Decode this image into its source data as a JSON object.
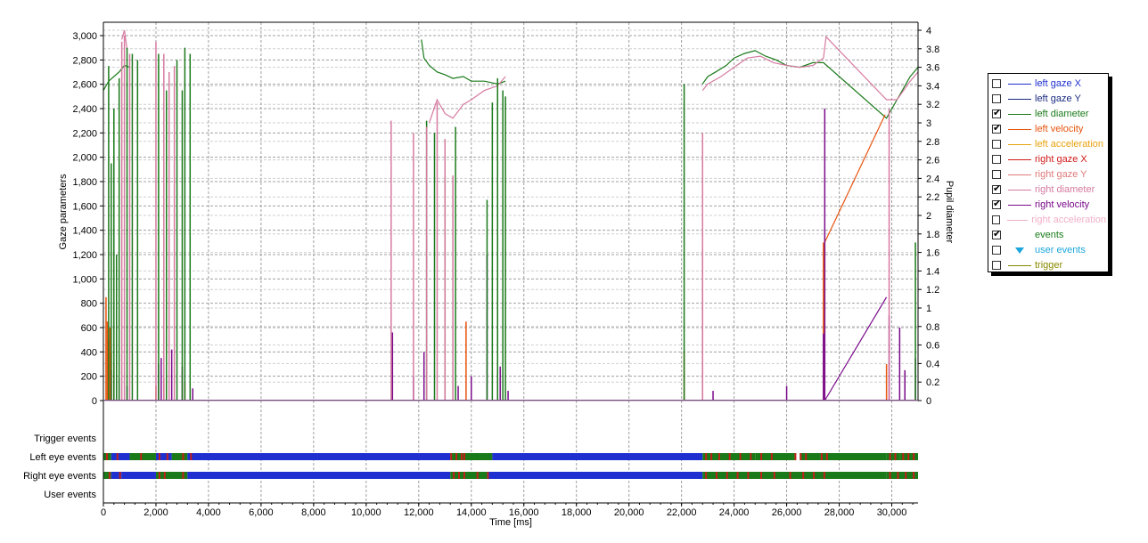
{
  "chart_data": {
    "type": "line",
    "xlabel": "Time [ms]",
    "ylabel_left": "Gaze parameters",
    "ylabel_right": "Pupil diameter",
    "xlim": [
      0,
      31000
    ],
    "ylim_left": [
      0,
      3000
    ],
    "ylim_right": [
      0,
      4
    ],
    "x_ticks": [
      0,
      2000,
      4000,
      6000,
      8000,
      10000,
      12000,
      14000,
      16000,
      18000,
      20000,
      22000,
      24000,
      26000,
      28000,
      30000
    ],
    "x_tick_labels": [
      "0",
      "2,000",
      "4,000",
      "6,000",
      "8,000",
      "10,000",
      "12,000",
      "14,000",
      "16,000",
      "18,000",
      "20,000",
      "22,000",
      "24,000",
      "26,000",
      "28,000",
      "30,000"
    ],
    "y_left_ticks": [
      0,
      200,
      400,
      600,
      800,
      1000,
      1200,
      1400,
      1600,
      1800,
      2000,
      2200,
      2400,
      2600,
      2800,
      3000
    ],
    "y_left_tick_labels": [
      "0",
      "200",
      "400",
      "600",
      "800",
      "1,000",
      "1,200",
      "1,400",
      "1,600",
      "1,800",
      "2,000",
      "2,200",
      "2,400",
      "2,600",
      "2,800",
      "3,000"
    ],
    "y_right_ticks": [
      0,
      0.2,
      0.4,
      0.6,
      0.8,
      1,
      1.2,
      1.4,
      1.6,
      1.8,
      2,
      2.2,
      2.4,
      2.6,
      2.8,
      3,
      3.2,
      3.4,
      3.6,
      3.8,
      4
    ],
    "y_right_tick_labels": [
      "0",
      "0.2",
      "0.4",
      "0.6",
      "0.8",
      "1",
      "1.2",
      "1.4",
      "1.6",
      "1.8",
      "2",
      "2.2",
      "2.4",
      "2.6",
      "2.8",
      "3",
      "3.2",
      "3.4",
      "3.6",
      "3.8",
      "4"
    ],
    "grid": true,
    "legend_position": "right",
    "legend": [
      {
        "name": "left gaze X",
        "checked": false,
        "color": "#1f2fd0"
      },
      {
        "name": "left gaze Y",
        "checked": false,
        "color": "#1a2a80"
      },
      {
        "name": "left diameter",
        "checked": true,
        "color": "#1a7a1a"
      },
      {
        "name": "left velocity",
        "checked": true,
        "color": "#e8540e"
      },
      {
        "name": "left acceleration",
        "checked": false,
        "color": "#e8a20e"
      },
      {
        "name": "right gaze X",
        "checked": false,
        "color": "#d01a1a"
      },
      {
        "name": "right gaze Y",
        "checked": false,
        "color": "#e07a7a"
      },
      {
        "name": "right diameter",
        "checked": true,
        "color": "#d67aa0"
      },
      {
        "name": "right velocity",
        "checked": true,
        "color": "#7a0a8a"
      },
      {
        "name": "right acceleration",
        "checked": false,
        "color": "#f0b0c8"
      },
      {
        "name": "events",
        "checked": true,
        "color": "#1a7a1a"
      },
      {
        "name": "user events",
        "checked": false,
        "color": "#1ca7dc"
      },
      {
        "name": "trigger",
        "checked": false,
        "color": "#8a8a00"
      }
    ],
    "series": [
      {
        "name": "left diameter",
        "axis": "right",
        "color": "#1a7a1a",
        "segments": [
          [
            [
              0,
              3.35
            ],
            [
              200,
              3.45
            ],
            [
              400,
              3.5
            ],
            [
              600,
              3.55
            ],
            [
              800,
              3.62
            ],
            [
              1000,
              3.6
            ]
          ],
          [
            [
              12100,
              3.9
            ],
            [
              12200,
              3.7
            ],
            [
              12400,
              3.62
            ],
            [
              12700,
              3.55
            ],
            [
              13000,
              3.52
            ],
            [
              13300,
              3.48
            ],
            [
              13700,
              3.5
            ],
            [
              14000,
              3.45
            ],
            [
              14500,
              3.45
            ],
            [
              15000,
              3.42
            ],
            [
              15300,
              3.45
            ]
          ],
          [
            [
              22800,
              3.42
            ],
            [
              23000,
              3.5
            ],
            [
              23300,
              3.55
            ],
            [
              23700,
              3.62
            ],
            [
              24000,
              3.7
            ],
            [
              24400,
              3.75
            ],
            [
              24800,
              3.78
            ],
            [
              25200,
              3.72
            ],
            [
              25600,
              3.68
            ],
            [
              26000,
              3.62
            ],
            [
              26500,
              3.6
            ],
            [
              27000,
              3.65
            ],
            [
              27400,
              3.65
            ],
            [
              29800,
              3.05
            ],
            [
              30200,
              3.25
            ],
            [
              30700,
              3.5
            ],
            [
              31000,
              3.6
            ]
          ]
        ]
      },
      {
        "name": "right diameter",
        "axis": "right",
        "color": "#d67aa0",
        "segments": [
          [
            [
              700,
              3.9
            ],
            [
              800,
              4.0
            ],
            [
              900,
              3.8
            ]
          ],
          [
            [
              12400,
              3.0
            ],
            [
              12700,
              3.25
            ],
            [
              13000,
              3.1
            ],
            [
              13300,
              3.05
            ],
            [
              13700,
              3.2
            ],
            [
              14000,
              3.25
            ],
            [
              14500,
              3.35
            ],
            [
              15000,
              3.4
            ],
            [
              15300,
              3.5
            ]
          ],
          [
            [
              22800,
              3.35
            ],
            [
              23000,
              3.42
            ],
            [
              23500,
              3.5
            ],
            [
              24000,
              3.6
            ],
            [
              24500,
              3.7
            ],
            [
              25000,
              3.72
            ],
            [
              25500,
              3.65
            ],
            [
              26000,
              3.62
            ],
            [
              26500,
              3.6
            ],
            [
              27000,
              3.62
            ],
            [
              27400,
              3.7
            ],
            [
              27500,
              3.93
            ],
            [
              29800,
              3.25
            ],
            [
              30200,
              3.25
            ],
            [
              30700,
              3.45
            ],
            [
              31000,
              3.55
            ]
          ]
        ]
      },
      {
        "name": "left velocity",
        "axis": "left",
        "color": "#e8540e",
        "spikes": [
          [
            100,
            850
          ],
          [
            150,
            650
          ],
          [
            200,
            500
          ],
          [
            250,
            600
          ],
          [
            300,
            400
          ],
          [
            400,
            300
          ],
          [
            500,
            200
          ],
          [
            2000,
            120
          ],
          [
            2300,
            180
          ],
          [
            3100,
            150
          ],
          [
            13800,
            650
          ],
          [
            22100,
            400
          ],
          [
            27400,
            1300
          ],
          [
            29800,
            300
          ]
        ],
        "segments": [
          [
            [
              27450,
              1300
            ],
            [
              29750,
              2350
            ]
          ]
        ]
      },
      {
        "name": "right velocity",
        "axis": "left",
        "color": "#7a0a8a",
        "spikes": [
          [
            300,
            250
          ],
          [
            600,
            180
          ],
          [
            900,
            120
          ],
          [
            2100,
            300
          ],
          [
            2200,
            350
          ],
          [
            2400,
            150
          ],
          [
            2600,
            420
          ],
          [
            3000,
            280
          ],
          [
            3400,
            100
          ],
          [
            11000,
            560
          ],
          [
            11800,
            200
          ],
          [
            12200,
            400
          ],
          [
            13500,
            120
          ],
          [
            14000,
            200
          ],
          [
            14600,
            1200
          ],
          [
            15100,
            280
          ],
          [
            15400,
            80
          ],
          [
            22800,
            1250
          ],
          [
            23200,
            80
          ],
          [
            26000,
            120
          ],
          [
            27400,
            550
          ],
          [
            27450,
            2400
          ],
          [
            29900,
            700
          ],
          [
            30300,
            600
          ],
          [
            30500,
            250
          ],
          [
            30900,
            350
          ]
        ],
        "segments": [
          [
            [
              27450,
              0
            ],
            [
              29800,
              850
            ]
          ]
        ]
      },
      {
        "name": "left diameter bars",
        "axis": "left",
        "color": "#1a7a1a",
        "spikes": [
          [
            200,
            2750
          ],
          [
            300,
            1950
          ],
          [
            400,
            2400
          ],
          [
            500,
            1200
          ],
          [
            600,
            2650
          ],
          [
            900,
            2900
          ],
          [
            1100,
            2850
          ],
          [
            1300,
            2800
          ],
          [
            2100,
            2850
          ],
          [
            2400,
            2550
          ],
          [
            2800,
            2800
          ],
          [
            3000,
            2550
          ],
          [
            3100,
            2900
          ],
          [
            3300,
            2850
          ],
          [
            12300,
            2300
          ],
          [
            12600,
            2200
          ],
          [
            13000,
            1850
          ],
          [
            13400,
            2250
          ],
          [
            14600,
            1650
          ],
          [
            14800,
            2450
          ],
          [
            15000,
            2650
          ],
          [
            15200,
            2550
          ],
          [
            15300,
            2500
          ],
          [
            22100,
            2600
          ],
          [
            30900,
            1300
          ]
        ]
      },
      {
        "name": "right diameter bars",
        "axis": "left",
        "color": "#d67aa0",
        "spikes": [
          [
            700,
            2950
          ],
          [
            800,
            3000
          ],
          [
            1000,
            2850
          ],
          [
            2000,
            2950
          ],
          [
            2300,
            2850
          ],
          [
            2500,
            2700
          ],
          [
            2700,
            2750
          ],
          [
            10950,
            2300
          ],
          [
            11800,
            2200
          ],
          [
            12300,
            2250
          ],
          [
            12700,
            2450
          ],
          [
            13000,
            2150
          ],
          [
            13300,
            1850
          ],
          [
            22800,
            2200
          ],
          [
            29900,
            2400
          ]
        ]
      }
    ],
    "event_tracks": [
      {
        "label": "Trigger events",
        "spans": []
      },
      {
        "label": "Left eye events",
        "spans": [
          {
            "from": 0,
            "to": 300,
            "color": "#1a7a1a"
          },
          {
            "from": 300,
            "to": 1000,
            "color": "#1f2fd0"
          },
          {
            "from": 1000,
            "to": 2000,
            "color": "#1a7a1a"
          },
          {
            "from": 2000,
            "to": 2600,
            "color": "#1f2fd0"
          },
          {
            "from": 2600,
            "to": 3200,
            "color": "#1a7a1a"
          },
          {
            "from": 3200,
            "to": 13200,
            "color": "#1f2fd0"
          },
          {
            "from": 13200,
            "to": 13600,
            "color": "#1a7a1a"
          },
          {
            "from": 13600,
            "to": 14800,
            "color": "#1a7a1a"
          },
          {
            "from": 14800,
            "to": 22800,
            "color": "#1f2fd0"
          },
          {
            "from": 22800,
            "to": 24800,
            "color": "#1a7a1a"
          },
          {
            "from": 24800,
            "to": 26300,
            "color": "#1a7a1a"
          },
          {
            "from": 26500,
            "to": 27300,
            "color": "#1a7a1a"
          },
          {
            "from": 27300,
            "to": 29800,
            "color": "#1a7a1a"
          },
          {
            "from": 29800,
            "to": 30300,
            "color": "#1a7a1a"
          },
          {
            "from": 30300,
            "to": 31000,
            "color": "#1a7a1a"
          }
        ]
      },
      {
        "label": "Right eye events",
        "spans": [
          {
            "from": 0,
            "to": 300,
            "color": "#1a7a1a"
          },
          {
            "from": 300,
            "to": 700,
            "color": "#1f2fd0"
          },
          {
            "from": 700,
            "to": 2000,
            "color": "#1f2fd0"
          },
          {
            "from": 2000,
            "to": 3200,
            "color": "#1a7a1a"
          },
          {
            "from": 3200,
            "to": 13200,
            "color": "#1f2fd0"
          },
          {
            "from": 13200,
            "to": 14600,
            "color": "#1a7a1a"
          },
          {
            "from": 14600,
            "to": 22800,
            "color": "#1f2fd0"
          },
          {
            "from": 22800,
            "to": 29800,
            "color": "#1a7a1a"
          },
          {
            "from": 29800,
            "to": 31000,
            "color": "#1a7a1a"
          }
        ]
      },
      {
        "label": "User events",
        "spans": []
      }
    ],
    "event_marks": [
      {
        "track": 1,
        "x": [
          100,
          500,
          1400,
          2100,
          2400,
          3000,
          3300,
          13200,
          13400,
          13600,
          13700,
          22900,
          23100,
          23400,
          23800,
          24200,
          24600,
          25000,
          25400,
          26300,
          26500,
          26700,
          27300,
          27500,
          29900,
          30100,
          30400,
          30600,
          30800
        ],
        "color": "#c0201a"
      },
      {
        "track": 2,
        "x": [
          200,
          600,
          2100,
          2300,
          3000,
          13300,
          13500,
          13700,
          14200,
          14600,
          22900,
          23300,
          23700,
          24100,
          24500,
          25000,
          25500,
          26100,
          26600,
          27000,
          27400,
          29900,
          30200,
          30500,
          30800
        ],
        "color": "#c0201a"
      }
    ]
  }
}
